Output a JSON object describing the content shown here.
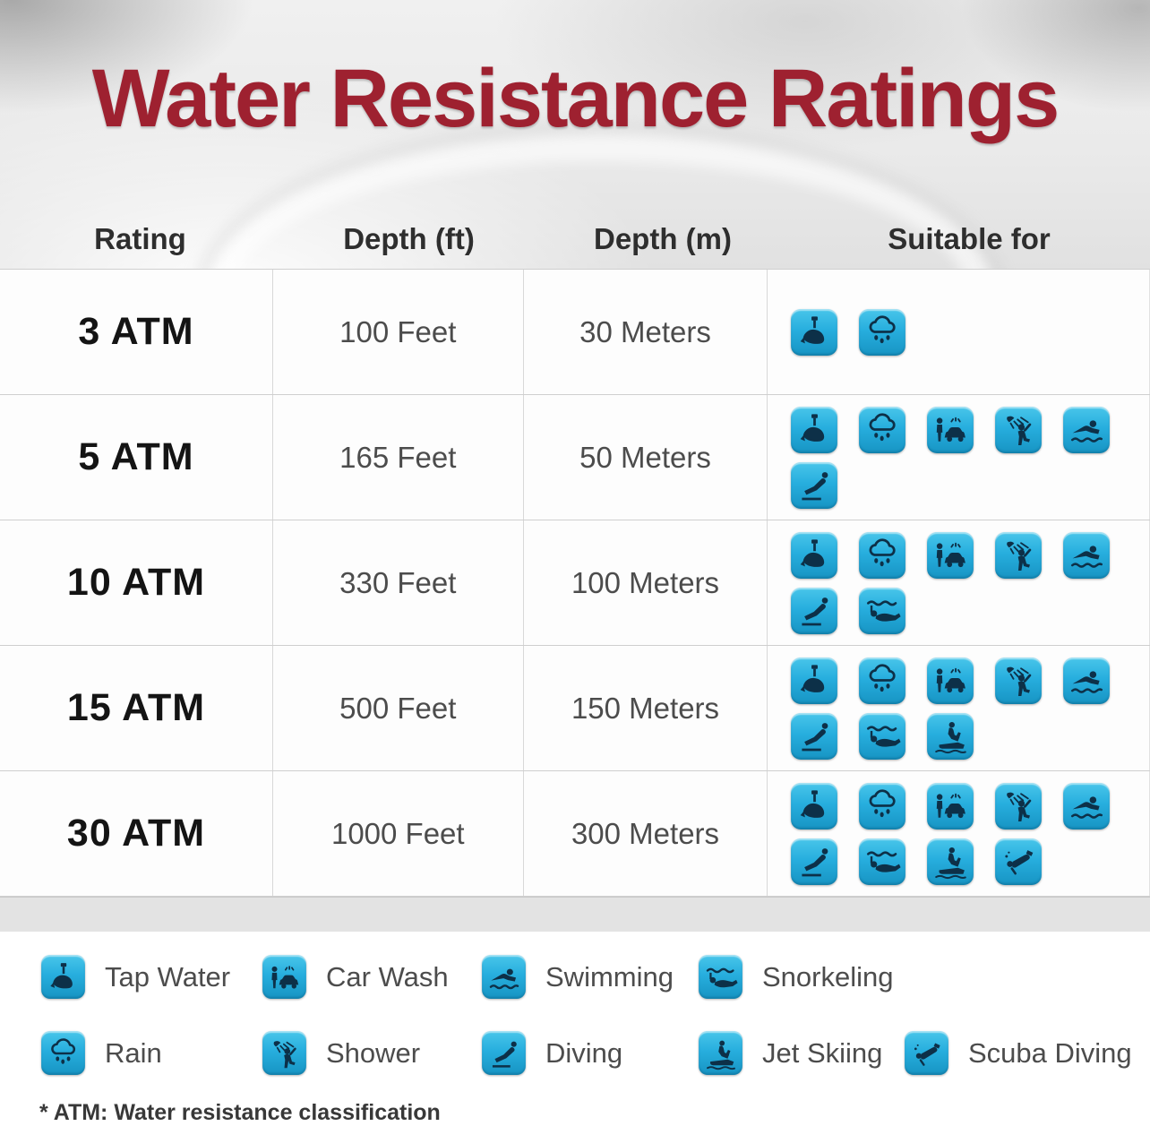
{
  "title": "Water Resistance Ratings",
  "table": {
    "headers": [
      "Rating",
      "Depth (ft)",
      "Depth (m)",
      "Suitable for"
    ],
    "rows": [
      {
        "rating": "3 ATM",
        "depth_ft": "100 Feet",
        "depth_m": "30 Meters",
        "suitable_for": [
          "tap-water",
          "rain"
        ]
      },
      {
        "rating": "5 ATM",
        "depth_ft": "165 Feet",
        "depth_m": "50 Meters",
        "suitable_for": [
          "tap-water",
          "rain",
          "car-wash",
          "shower",
          "swimming",
          "diving"
        ]
      },
      {
        "rating": "10 ATM",
        "depth_ft": "330 Feet",
        "depth_m": "100 Meters",
        "suitable_for": [
          "tap-water",
          "rain",
          "car-wash",
          "shower",
          "swimming",
          "diving",
          "snorkeling"
        ]
      },
      {
        "rating": "15 ATM",
        "depth_ft": "500 Feet",
        "depth_m": "150 Meters",
        "suitable_for": [
          "tap-water",
          "rain",
          "car-wash",
          "shower",
          "swimming",
          "diving",
          "snorkeling",
          "jet-skiing"
        ]
      },
      {
        "rating": "30 ATM",
        "depth_ft": "1000 Feet",
        "depth_m": "300 Meters",
        "suitable_for": [
          "tap-water",
          "rain",
          "car-wash",
          "shower",
          "swimming",
          "diving",
          "snorkeling",
          "jet-skiing",
          "scuba-diving"
        ]
      }
    ]
  },
  "legend": {
    "rows": [
      [
        {
          "icon": "tap-water",
          "label": "Tap Water"
        },
        {
          "icon": "car-wash",
          "label": "Car Wash"
        },
        {
          "icon": "swimming",
          "label": "Swimming"
        },
        {
          "icon": "snorkeling",
          "label": "Snorkeling"
        }
      ],
      [
        {
          "icon": "rain",
          "label": "Rain"
        },
        {
          "icon": "shower",
          "label": "Shower"
        },
        {
          "icon": "diving",
          "label": "Diving"
        },
        {
          "icon": "jet-skiing",
          "label": "Jet Skiing"
        },
        {
          "icon": "scuba-diving",
          "label": "Scuba Diving"
        }
      ]
    ]
  },
  "footnote": "* ATM: Water resistance classification",
  "colors": {
    "title_red": "#9e2130",
    "icon_cyan": "#27aede",
    "icon_glyph": "#0d3048",
    "band_gray": "#e3e3e3"
  },
  "chart_data": {
    "type": "table",
    "title": "Water Resistance Ratings",
    "columns": [
      "Rating",
      "Depth (ft)",
      "Depth (m)",
      "Suitable for"
    ],
    "rows": [
      [
        "3 ATM",
        "100 Feet",
        "30 Meters",
        "Tap Water, Rain"
      ],
      [
        "5 ATM",
        "165 Feet",
        "50 Meters",
        "Tap Water, Rain, Car Wash, Shower, Swimming, Diving"
      ],
      [
        "10 ATM",
        "330 Feet",
        "100 Meters",
        "Tap Water, Rain, Car Wash, Shower, Swimming, Diving, Snorkeling"
      ],
      [
        "15 ATM",
        "500 Feet",
        "150 Meters",
        "Tap Water, Rain, Car Wash, Shower, Swimming, Diving, Snorkeling, Jet Skiing"
      ],
      [
        "30 ATM",
        "1000 Feet",
        "300 Meters",
        "Tap Water, Rain, Car Wash, Shower, Swimming, Diving, Snorkeling, Jet Skiing, Scuba Diving"
      ]
    ],
    "footnote": "* ATM: Water resistance classification"
  }
}
